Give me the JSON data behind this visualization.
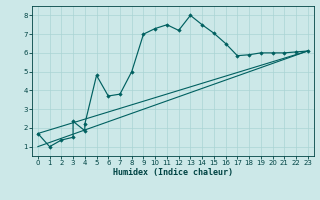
{
  "title": "",
  "xlabel": "Humidex (Indice chaleur)",
  "ylabel": "",
  "bg_color": "#cce8e8",
  "line_color": "#006060",
  "marker_color": "#006060",
  "grid_color": "#aad4d4",
  "axis_color": "#004444",
  "tick_color": "#004444",
  "xlim": [
    -0.5,
    23.5
  ],
  "ylim": [
    0.5,
    8.5
  ],
  "xticks": [
    0,
    1,
    2,
    3,
    4,
    5,
    6,
    7,
    8,
    9,
    10,
    11,
    12,
    13,
    14,
    15,
    16,
    17,
    18,
    19,
    20,
    21,
    22,
    23
  ],
  "yticks": [
    1,
    2,
    3,
    4,
    5,
    6,
    7,
    8
  ],
  "curve_x": [
    0,
    1,
    2,
    3,
    3,
    4,
    4,
    5,
    6,
    7,
    8,
    9,
    10,
    11,
    12,
    13,
    14,
    15,
    16,
    17,
    18,
    19,
    20,
    21,
    22,
    23
  ],
  "curve_y": [
    1.7,
    1.0,
    1.35,
    1.5,
    2.35,
    1.85,
    2.2,
    4.8,
    3.7,
    3.8,
    5.0,
    7.0,
    7.3,
    7.5,
    7.2,
    8.0,
    7.5,
    7.05,
    6.5,
    5.85,
    5.9,
    6.0,
    6.0,
    6.0,
    6.05,
    6.1
  ],
  "line1_x": [
    0,
    23
  ],
  "line1_y": [
    1.0,
    6.1
  ],
  "line2_x": [
    0,
    23
  ],
  "line2_y": [
    1.7,
    6.1
  ]
}
